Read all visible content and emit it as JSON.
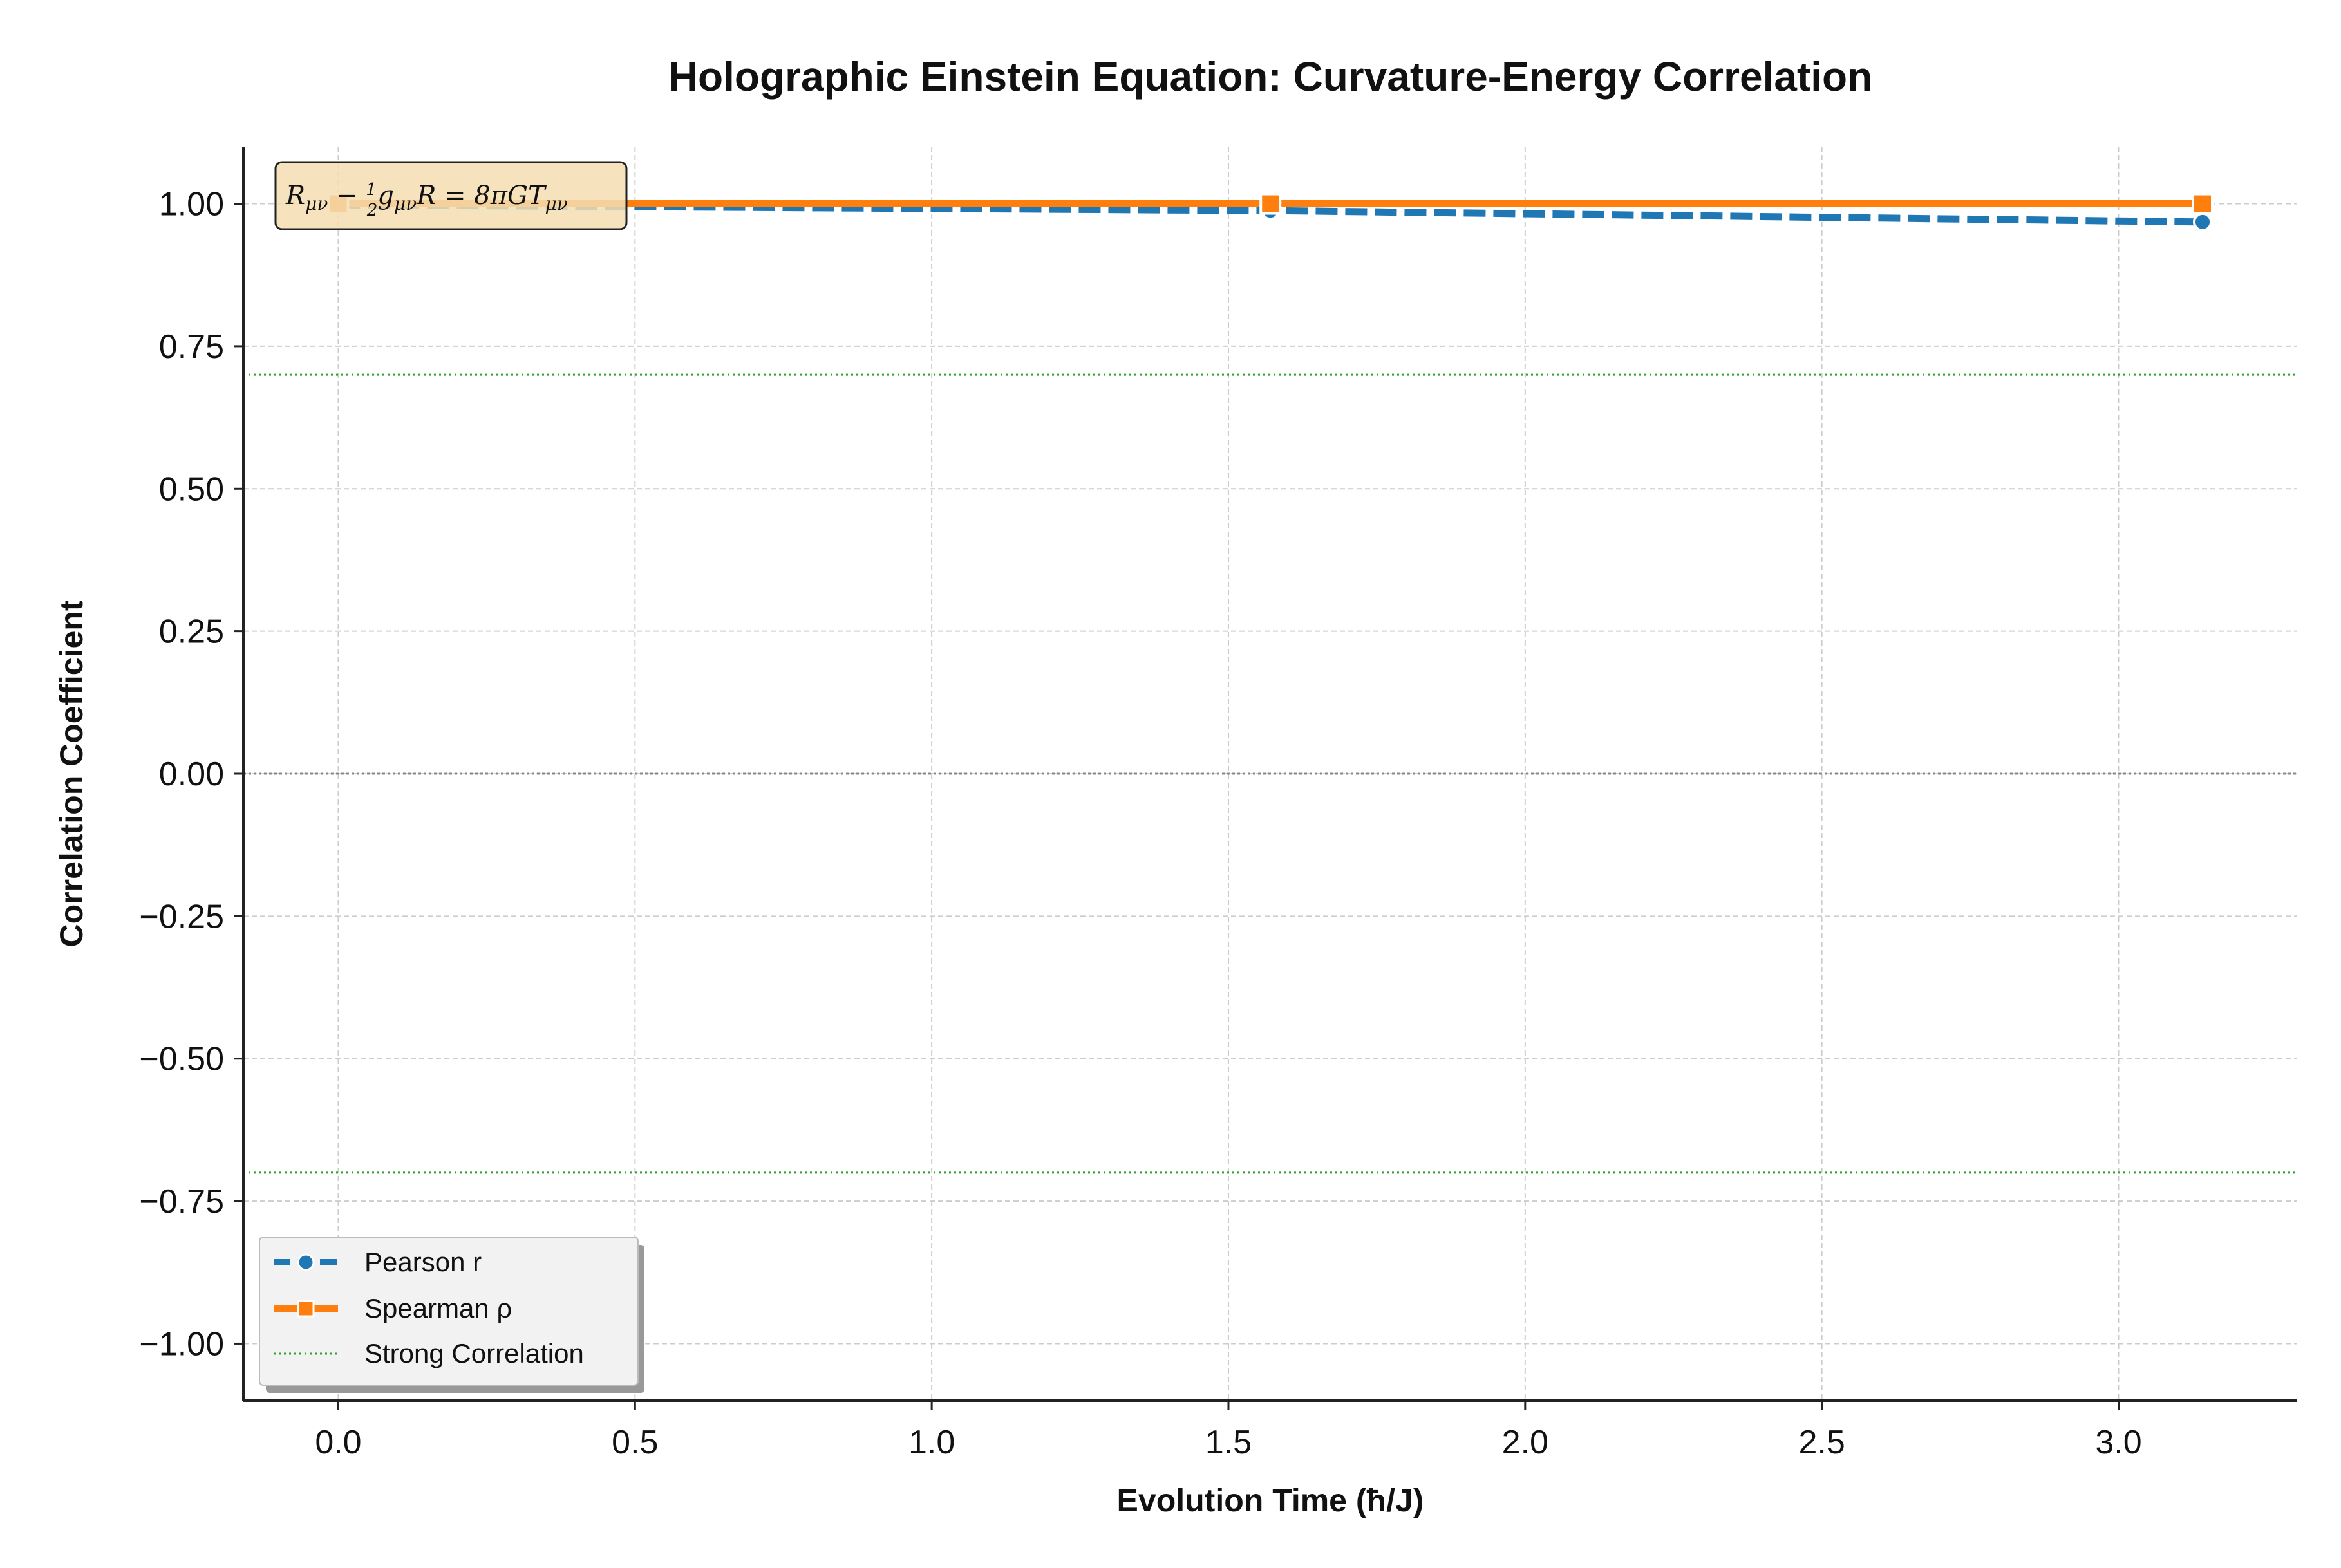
{
  "chart_data": {
    "type": "line",
    "title": "Holographic Einstein Equation: Curvature-Energy Correlation",
    "xlabel": "Evolution Time (ħ/J)",
    "ylabel": "Correlation Coefficient",
    "xlim": [
      -0.16,
      3.3
    ],
    "ylim": [
      -1.1,
      1.1
    ],
    "x_ticks": [
      0.0,
      0.5,
      1.0,
      1.5,
      2.0,
      2.5,
      3.0
    ],
    "x_tick_labels": [
      "0.0",
      "0.5",
      "1.0",
      "1.5",
      "2.0",
      "2.5",
      "3.0"
    ],
    "y_ticks": [
      1.0,
      0.75,
      0.5,
      0.25,
      0.0,
      -0.25,
      -0.5,
      -0.75,
      -1.0
    ],
    "y_tick_labels": [
      "1.00",
      "0.75",
      "0.50",
      "0.25",
      "0.00",
      "−0.25",
      "−0.50",
      "−0.75",
      "−1.00"
    ],
    "grid": true,
    "legend_position": "lower-left",
    "x": [
      0.0,
      1.5708,
      3.1416
    ],
    "series": [
      {
        "name": "Pearson r",
        "values": [
          0.998,
          0.988,
          0.968
        ],
        "color": "#1f77b4",
        "line_style": "dashed",
        "marker": "circle"
      },
      {
        "name": "Spearman ρ",
        "values": [
          1.0,
          1.0,
          1.0
        ],
        "color": "#ff7f0e",
        "line_style": "solid",
        "marker": "square"
      }
    ],
    "reference_lines": [
      {
        "name": "Strong Correlation",
        "values": [
          0.7,
          -0.7
        ],
        "color": "#2ca02c",
        "line_style": "dotted"
      },
      {
        "name": "",
        "values": [
          0.0
        ],
        "color": "#888888",
        "line_style": "dotted"
      }
    ],
    "annotation": {
      "text": "R_μν − ½ g_μν R = 8πG T_μν",
      "position": "top-left",
      "background": "#f5deb3"
    }
  }
}
